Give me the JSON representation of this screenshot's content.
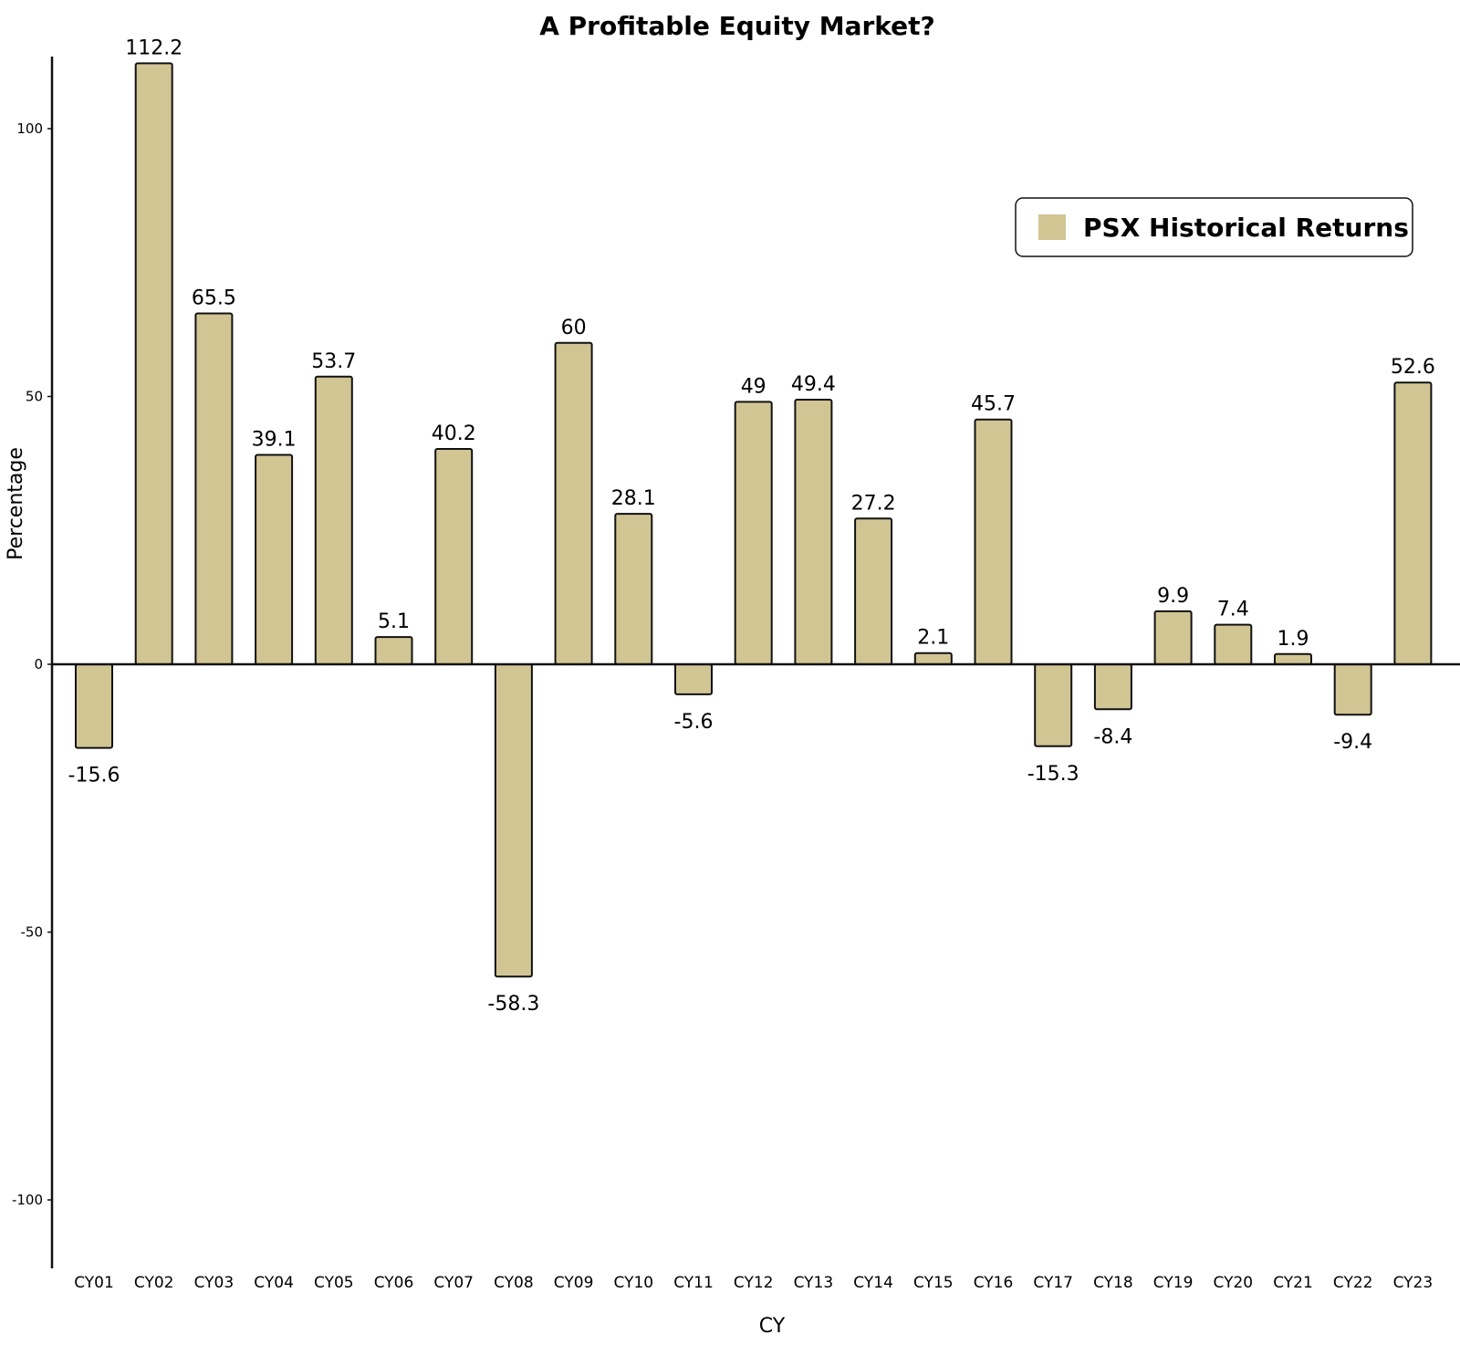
{
  "chart_data": {
    "type": "bar",
    "title": "A Profitable Equity Market?",
    "xlabel": "CY",
    "ylabel": "Percentage",
    "categories": [
      "CY01",
      "CY02",
      "CY03",
      "CY04",
      "CY05",
      "CY06",
      "CY07",
      "CY08",
      "CY09",
      "CY10",
      "CY11",
      "CY12",
      "CY13",
      "CY14",
      "CY15",
      "CY16",
      "CY17",
      "CY18",
      "CY19",
      "CY20",
      "CY21",
      "CY22",
      "CY23"
    ],
    "series": [
      {
        "name": "PSX Historical Returns",
        "values": [
          -15.6,
          112.2,
          65.5,
          39.1,
          53.7,
          5.1,
          40.2,
          -58.3,
          60,
          28.1,
          -5.6,
          49,
          49.4,
          27.2,
          2.1,
          45.7,
          -15.3,
          -8.4,
          9.9,
          7.4,
          1.9,
          -9.4,
          52.6
        ],
        "color": "#d2c594"
      }
    ],
    "data_labels": [
      "-15.6",
      "112.2",
      "65.5",
      "39.1",
      "53.7",
      "5.1",
      "40.2",
      "-58.3",
      "60",
      "28.1",
      "-5.6",
      "49",
      "49.4",
      "27.2",
      "2.1",
      "45.7",
      "-15.3",
      "-8.4",
      "9.9",
      "7.4",
      "1.9",
      "-9.4",
      "52.6"
    ],
    "yticks": [
      100,
      50,
      0,
      -50,
      -100
    ],
    "ylim": [
      -112,
      113
    ],
    "grid": false,
    "legend_position": "top-right",
    "colors": {
      "bar_fill": "#d2c594",
      "bar_stroke": "#111111",
      "axis": "#111111",
      "legend_border": "#111111",
      "background": "#ffffff"
    }
  }
}
